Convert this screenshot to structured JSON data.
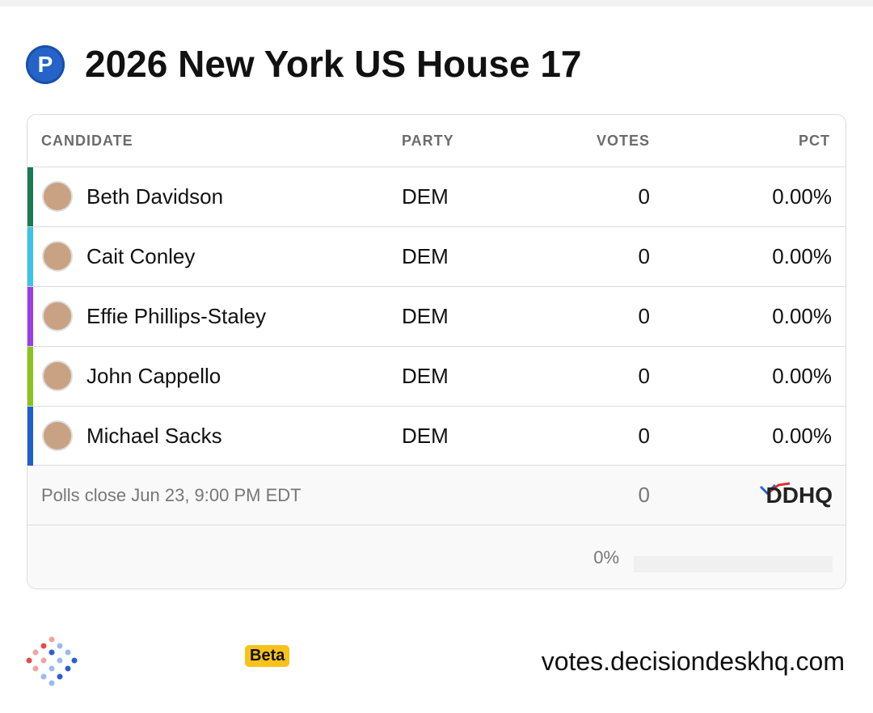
{
  "header": {
    "badge": "P",
    "title": "2026 New York US House 17"
  },
  "table": {
    "columns": [
      "CANDIDATE",
      "PARTY",
      "VOTES",
      "PCT"
    ],
    "rows": [
      {
        "name": "Beth Davidson",
        "party": "DEM",
        "votes": "0",
        "pct": "0.00%",
        "color": "#1b7a55"
      },
      {
        "name": "Cait Conley",
        "party": "DEM",
        "votes": "0",
        "pct": "0.00%",
        "color": "#3cc3e8"
      },
      {
        "name": "Effie Phillips-Staley",
        "party": "DEM",
        "votes": "0",
        "pct": "0.00%",
        "color": "#9a3ee6"
      },
      {
        "name": "John Cappello",
        "party": "DEM",
        "votes": "0",
        "pct": "0.00%",
        "color": "#8cc21b"
      },
      {
        "name": "Michael Sacks",
        "party": "DEM",
        "votes": "0",
        "pct": "0.00%",
        "color": "#1e5ecf"
      }
    ],
    "footer": {
      "note": "Polls close Jun 23, 9:00 PM EDT",
      "total_votes": "0",
      "source": "DDHQ"
    },
    "reporting": {
      "value": 0,
      "label": "0%"
    }
  },
  "footer": {
    "tag": "Beta",
    "site": "votes.decisiondeskhq.com"
  }
}
